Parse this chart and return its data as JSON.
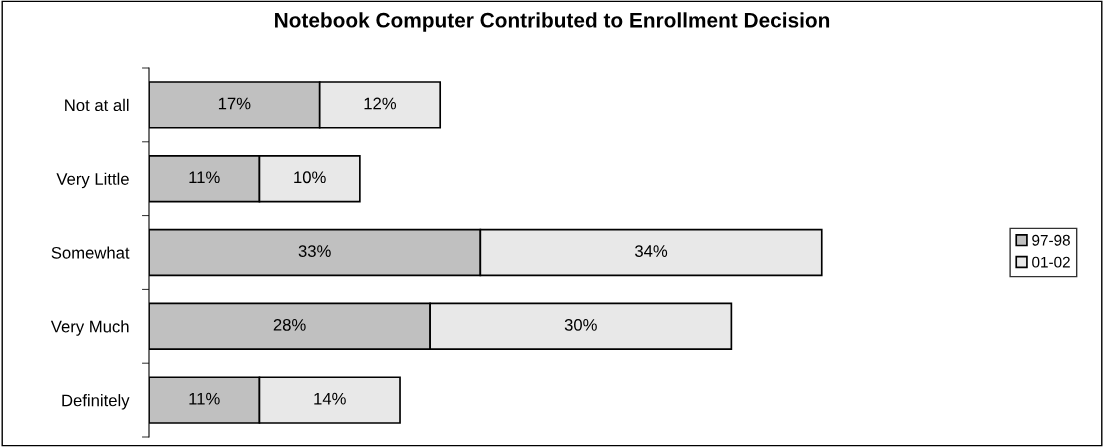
{
  "chart_data": {
    "type": "bar",
    "orientation": "horizontal",
    "stacked": true,
    "title": "Notebook Computer Contributed to Enrollment Decision",
    "categories": [
      "Not at all",
      "Very Little",
      "Somewhat",
      "Very Much",
      "Definitely"
    ],
    "series": [
      {
        "name": "97-98",
        "color": "#c0c0c0",
        "values": [
          17,
          11,
          33,
          28,
          11
        ],
        "value_labels": [
          "17%",
          "11%",
          "33%",
          "28%",
          "11%"
        ]
      },
      {
        "name": "01-02",
        "color": "#e8e8e8",
        "values": [
          12,
          10,
          34,
          30,
          14
        ],
        "value_labels": [
          "12%",
          "10%",
          "34%",
          "30%",
          "14%"
        ]
      }
    ],
    "tick_labels": "y",
    "grid": false,
    "legend": "right"
  }
}
